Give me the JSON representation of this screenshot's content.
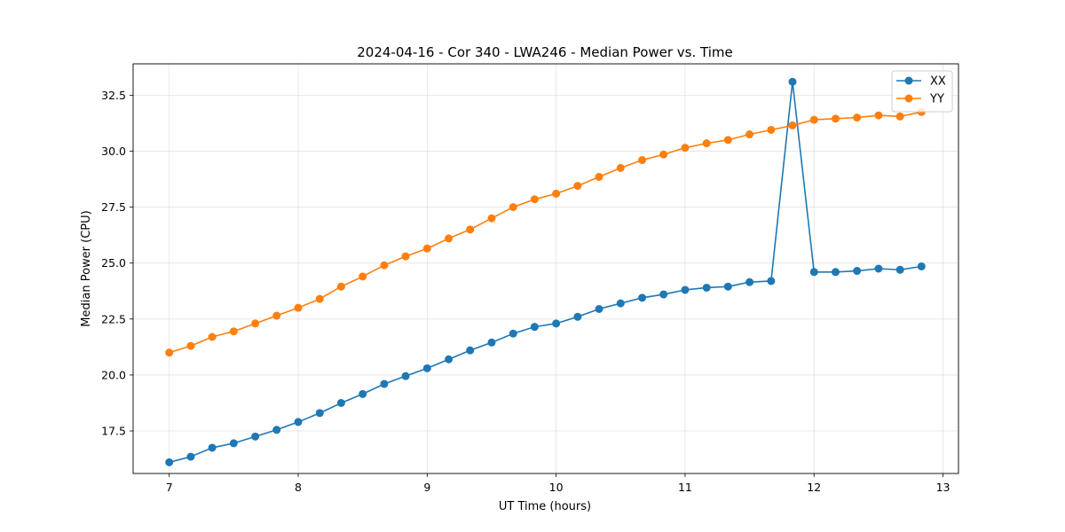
{
  "chart_data": {
    "type": "line",
    "title": "2024-04-16 - Cor 340 - LWA246 - Median Power vs. Time",
    "xlabel": "UT Time (hours)",
    "ylabel": "Median Power (CPU)",
    "xlim": [
      6.72,
      13.12
    ],
    "ylim": [
      15.6,
      33.9
    ],
    "xticks": [
      7,
      8,
      9,
      10,
      11,
      12,
      13
    ],
    "xtick_labels": [
      "7",
      "8",
      "9",
      "10",
      "11",
      "12",
      "13"
    ],
    "yticks": [
      17.5,
      20.0,
      22.5,
      25.0,
      27.5,
      30.0,
      32.5
    ],
    "ytick_labels": [
      "17.5",
      "20.0",
      "22.5",
      "25.0",
      "27.5",
      "30.0",
      "32.5"
    ],
    "grid": true,
    "legend_position": "top-right",
    "x": [
      7.0,
      7.167,
      7.333,
      7.5,
      7.667,
      7.833,
      8.0,
      8.167,
      8.333,
      8.5,
      8.667,
      8.833,
      9.0,
      9.167,
      9.333,
      9.5,
      9.667,
      9.833,
      10.0,
      10.167,
      10.333,
      10.5,
      10.667,
      10.833,
      11.0,
      11.167,
      11.333,
      11.5,
      11.667,
      11.833,
      12.0,
      12.167,
      12.333,
      12.5,
      12.667,
      12.833
    ],
    "series": [
      {
        "name": "XX",
        "color": "#1f77b4",
        "values": [
          16.1,
          16.35,
          16.75,
          16.95,
          17.25,
          17.55,
          17.9,
          18.3,
          18.75,
          19.15,
          19.6,
          19.95,
          20.3,
          20.7,
          21.1,
          21.45,
          21.85,
          22.15,
          22.3,
          22.6,
          22.95,
          23.2,
          23.45,
          23.6,
          23.8,
          23.9,
          23.95,
          24.15,
          24.2,
          33.1,
          24.6,
          24.6,
          24.65,
          24.75,
          24.7,
          24.85
        ]
      },
      {
        "name": "YY",
        "color": "#ff7f0e",
        "values": [
          21.0,
          21.3,
          21.7,
          21.95,
          22.3,
          22.65,
          23.0,
          23.4,
          23.95,
          24.4,
          24.9,
          25.3,
          25.65,
          26.1,
          26.5,
          27.0,
          27.5,
          27.85,
          28.1,
          28.45,
          28.85,
          29.25,
          29.6,
          29.85,
          30.15,
          30.35,
          30.5,
          30.75,
          30.95,
          31.15,
          31.4,
          31.45,
          31.5,
          31.6,
          31.55,
          31.75
        ]
      }
    ]
  }
}
